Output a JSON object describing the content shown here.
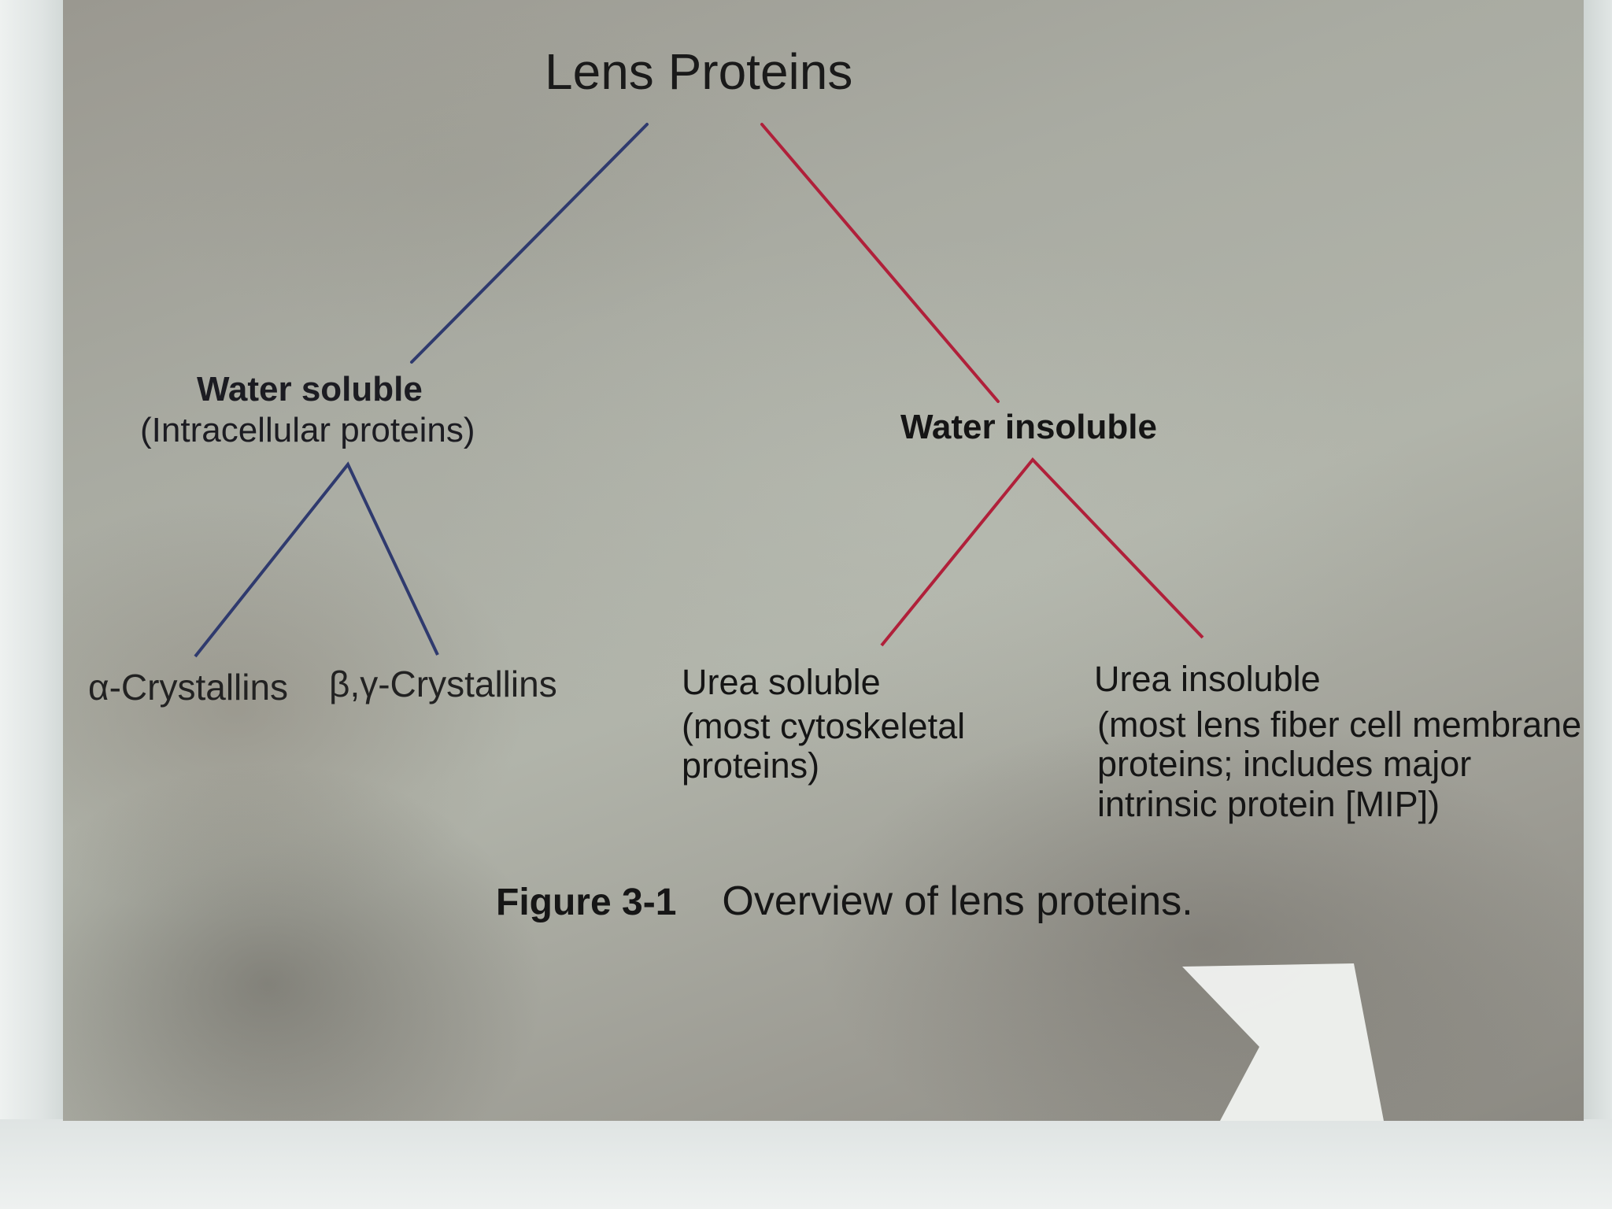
{
  "diagram": {
    "title": "Lens Proteins",
    "water_soluble": {
      "heading": "Water soluble",
      "subtitle": "(Intracellular proteins)",
      "children": [
        "α-Crystallins",
        "β,γ-Crystallins"
      ]
    },
    "water_insoluble": {
      "heading": "Water insoluble",
      "children": [
        {
          "heading": "Urea soluble",
          "lines": [
            "(most cytoskeletal",
            "proteins)"
          ]
        },
        {
          "heading": "Urea insoluble",
          "lines": [
            "(most lens fiber cell membrane",
            "proteins; includes major",
            "intrinsic protein [MIP])"
          ]
        }
      ]
    },
    "colors": {
      "soluble_branch": "#2f3a6e",
      "insoluble_branch": "#b0203a"
    }
  },
  "caption": {
    "number": "Figure 3-1",
    "text": "Overview of lens proteins."
  }
}
